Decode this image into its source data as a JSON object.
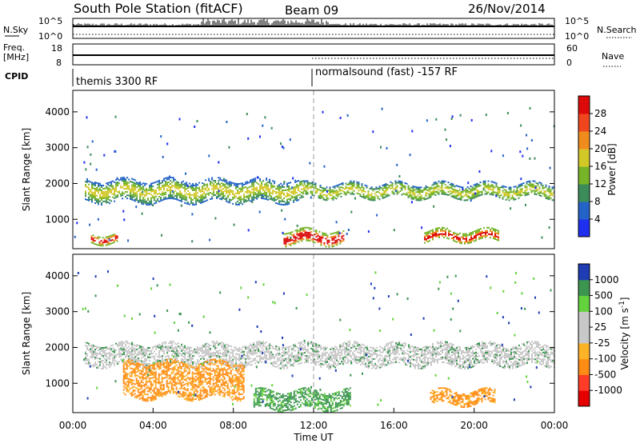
{
  "header": {
    "title": "South Pole Station (fitACF)",
    "beam": "Beam 09",
    "date": "26/Nov/2014"
  },
  "top_panels": {
    "nsky_label": "N.Sky",
    "nsearch_label": "N.Search",
    "noise_ticks_left": [
      "10^5",
      "10^0"
    ],
    "noise_ticks_right": [
      "10^5",
      "10^0"
    ],
    "freq_label_line1": "Freq.",
    "freq_label_line2": "[MHz]",
    "freq_ticks": [
      "18",
      "8"
    ],
    "nave_label": "Nave",
    "nave_ticks": [
      "60",
      "0"
    ],
    "cpid_label": "CPID",
    "cpid_segments": [
      {
        "label": "themis 3300 RF",
        "start_hour": 0
      },
      {
        "label": "normalsound (fast) -157 RF",
        "start_hour": 12
      }
    ]
  },
  "chart_data": [
    {
      "type": "heatmap",
      "name": "power",
      "xlabel": "",
      "ylabel": "Slant Range [km]",
      "x_range_hours": [
        0,
        24
      ],
      "xlim_label": [
        "00:00",
        "00:00"
      ],
      "ylim": [
        180,
        4600
      ],
      "y_ticks": [
        1000,
        2000,
        3000,
        4000
      ],
      "colorbar": {
        "label": "Power [dB]",
        "ticks": [
          "4",
          "8",
          "12",
          "16",
          "20",
          "24",
          "28"
        ],
        "colors": [
          "#1f2ff0",
          "#2464c8",
          "#3c8c5a",
          "#78b428",
          "#d2c828",
          "#f08c1e",
          "#f0461e",
          "#dc0a0a"
        ]
      },
      "echo_bands": [
        {
          "hours": [
            0.6,
            11.5
          ],
          "range_km": [
            1500,
            2100
          ],
          "dominant": "moderate"
        },
        {
          "hours": [
            11.5,
            24
          ],
          "range_km": [
            1600,
            2000
          ],
          "dominant": "moderate"
        },
        {
          "hours": [
            0.9,
            2.2
          ],
          "range_km": [
            350,
            600
          ],
          "dominant": "strong"
        },
        {
          "hours": [
            10.5,
            13.5
          ],
          "range_km": [
            300,
            700
          ],
          "dominant": "strong"
        },
        {
          "hours": [
            17.5,
            21.2
          ],
          "range_km": [
            400,
            700
          ],
          "dominant": "strong"
        }
      ]
    },
    {
      "type": "heatmap",
      "name": "velocity",
      "xlabel": "Time UT",
      "ylabel": "Slant Range [km]",
      "x_range_hours": [
        0,
        24
      ],
      "ylim": [
        180,
        4600
      ],
      "y_ticks": [
        1000,
        2000,
        3000,
        4000
      ],
      "x_tick_labels": [
        "00:00",
        "04:00",
        "08:00",
        "12:00",
        "16:00",
        "20:00",
        "00:00"
      ],
      "colorbar": {
        "label": "Velocity [m s^-1]",
        "ticks": [
          "1000",
          "500",
          "100",
          "25",
          "-25",
          "-100",
          "-500",
          "-1000"
        ],
        "colors": [
          "#1e3cb4",
          "#3c9650",
          "#64d23c",
          "#c8c8c8",
          "#c8c8c8",
          "#ffb428",
          "#ff8c14",
          "#ff3c28",
          "#e60000"
        ]
      },
      "echo_bands": [
        {
          "hours": [
            0.6,
            24
          ],
          "range_km": [
            1500,
            2100
          ],
          "dominant": "ground scatter"
        },
        {
          "hours": [
            2.5,
            8.5
          ],
          "range_km": [
            600,
            1600
          ],
          "dominant": "away (-500)"
        },
        {
          "hours": [
            9.0,
            13.8
          ],
          "range_km": [
            300,
            800
          ],
          "dominant": "toward (500)"
        },
        {
          "hours": [
            17.8,
            21.0
          ],
          "range_km": [
            400,
            800
          ],
          "dominant": "away (-500)"
        }
      ]
    }
  ]
}
